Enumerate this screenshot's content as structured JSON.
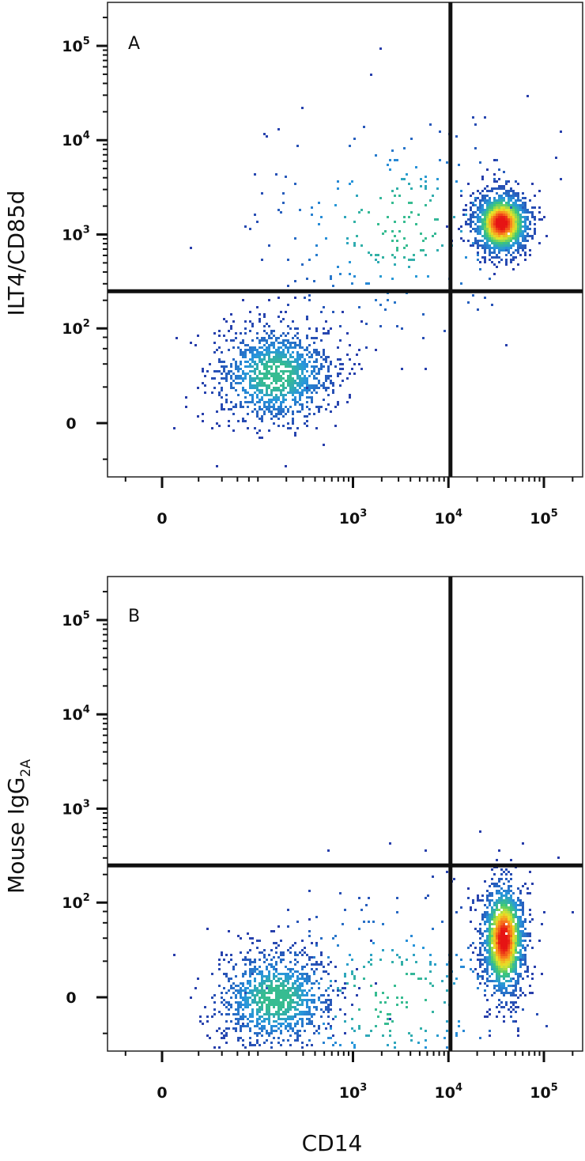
{
  "chart_data": [
    {
      "type": "scatter",
      "subtype": "flow-cytometry-density-plot",
      "panel_label": "A",
      "ylabel": "ILT4/CD85d",
      "xlabel": "",
      "x_scale": "biexponential",
      "y_scale": "biexponential",
      "x_ticks": [
        {
          "value": 0,
          "label": "0"
        },
        {
          "value": 1000,
          "base": "10",
          "exp": "3"
        },
        {
          "value": 10000,
          "base": "10",
          "exp": "4"
        },
        {
          "value": 100000,
          "base": "10",
          "exp": "5"
        }
      ],
      "y_ticks": [
        {
          "value": 0,
          "label": "0"
        },
        {
          "value": 100,
          "base": "10",
          "exp": "2"
        },
        {
          "value": 1000,
          "base": "10",
          "exp": "3"
        },
        {
          "value": 10000,
          "base": "10",
          "exp": "4"
        },
        {
          "value": 100000,
          "base": "10",
          "exp": "5"
        }
      ],
      "quadrant_gate": {
        "x": 10500,
        "y": 250
      },
      "clusters": [
        {
          "center_x": 35000,
          "center_y": 1350,
          "spread": "dense",
          "count": 1400
        },
        {
          "center_x": 150,
          "center_y": 30,
          "spread": "diffuse",
          "count": 1200
        },
        {
          "center_x": 3000,
          "center_y": 1300,
          "spread": "sparse",
          "count": 260
        }
      ]
    },
    {
      "type": "scatter",
      "subtype": "flow-cytometry-density-plot",
      "panel_label": "B",
      "ylabel": "Mouse IgG",
      "ylabel_subscript": "2A",
      "xlabel": "CD14",
      "x_scale": "biexponential",
      "y_scale": "biexponential",
      "x_ticks": [
        {
          "value": 0,
          "label": "0"
        },
        {
          "value": 1000,
          "base": "10",
          "exp": "3"
        },
        {
          "value": 10000,
          "base": "10",
          "exp": "4"
        },
        {
          "value": 100000,
          "base": "10",
          "exp": "5"
        }
      ],
      "y_ticks": [
        {
          "value": 0,
          "label": "0"
        },
        {
          "value": 100,
          "base": "10",
          "exp": "2"
        },
        {
          "value": 1000,
          "base": "10",
          "exp": "3"
        },
        {
          "value": 10000,
          "base": "10",
          "exp": "4"
        },
        {
          "value": 100000,
          "base": "10",
          "exp": "5"
        }
      ],
      "quadrant_gate": {
        "x": 10500,
        "y": 250
      },
      "clusters": [
        {
          "center_x": 37000,
          "center_y": 40,
          "spread": "dense-vertical",
          "count": 1500
        },
        {
          "center_x": 150,
          "center_y": 0,
          "spread": "diffuse",
          "count": 1100
        },
        {
          "center_x": 2500,
          "center_y": 0,
          "spread": "sparse",
          "count": 320
        }
      ]
    }
  ]
}
